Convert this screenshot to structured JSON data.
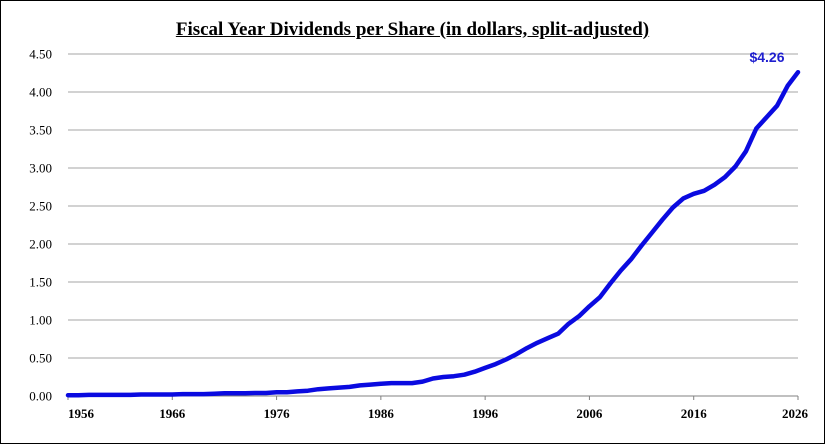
{
  "chart_data": {
    "type": "line",
    "title": "Fiscal Year Dividends per Share (in dollars, split-adjusted)",
    "xlabel": "",
    "ylabel": "",
    "xlim": [
      1956,
      2026
    ],
    "ylim": [
      0,
      4.5
    ],
    "x_ticks": [
      "1956",
      "1966",
      "1976",
      "1986",
      "1996",
      "2006",
      "2016",
      "2026"
    ],
    "y_ticks": [
      "0.00",
      "0.50",
      "1.00",
      "1.50",
      "2.00",
      "2.50",
      "3.00",
      "3.50",
      "4.00",
      "4.50"
    ],
    "grid": "horizontal",
    "line_color": "#0a0ae0",
    "annotation": {
      "text": "$4.26",
      "color": "#1f1fcf"
    },
    "series": [
      {
        "x": [
          1956,
          1957,
          1958,
          1959,
          1960,
          1961,
          1962,
          1963,
          1964,
          1965,
          1966,
          1967,
          1968,
          1969,
          1970,
          1971,
          1972,
          1973,
          1974,
          1975,
          1976,
          1977,
          1978,
          1979,
          1980,
          1981,
          1982,
          1983,
          1984,
          1985,
          1986,
          1987,
          1988,
          1989,
          1990,
          1991,
          1992,
          1993,
          1994,
          1995,
          1996,
          1997,
          1998,
          1999,
          2000,
          2001,
          2002,
          2003,
          2004,
          2005,
          2006,
          2007,
          2008,
          2009,
          2010,
          2011,
          2012,
          2013,
          2014,
          2015,
          2016,
          2017,
          2018,
          2019,
          2020,
          2021,
          2022,
          2023,
          2024,
          2025,
          2026
        ],
        "values": [
          0.01,
          0.01,
          0.015,
          0.015,
          0.015,
          0.015,
          0.015,
          0.02,
          0.02,
          0.02,
          0.02,
          0.025,
          0.025,
          0.025,
          0.03,
          0.035,
          0.035,
          0.035,
          0.04,
          0.04,
          0.05,
          0.05,
          0.06,
          0.07,
          0.09,
          0.1,
          0.11,
          0.12,
          0.14,
          0.15,
          0.16,
          0.17,
          0.17,
          0.17,
          0.19,
          0.23,
          0.25,
          0.26,
          0.28,
          0.32,
          0.37,
          0.42,
          0.48,
          0.55,
          0.63,
          0.7,
          0.76,
          0.82,
          0.95,
          1.05,
          1.18,
          1.3,
          1.48,
          1.65,
          1.8,
          1.98,
          2.15,
          2.32,
          2.48,
          2.6,
          2.66,
          2.7,
          2.78,
          2.88,
          3.02,
          3.22,
          3.52,
          3.67,
          3.82,
          4.08,
          4.26
        ]
      }
    ]
  }
}
